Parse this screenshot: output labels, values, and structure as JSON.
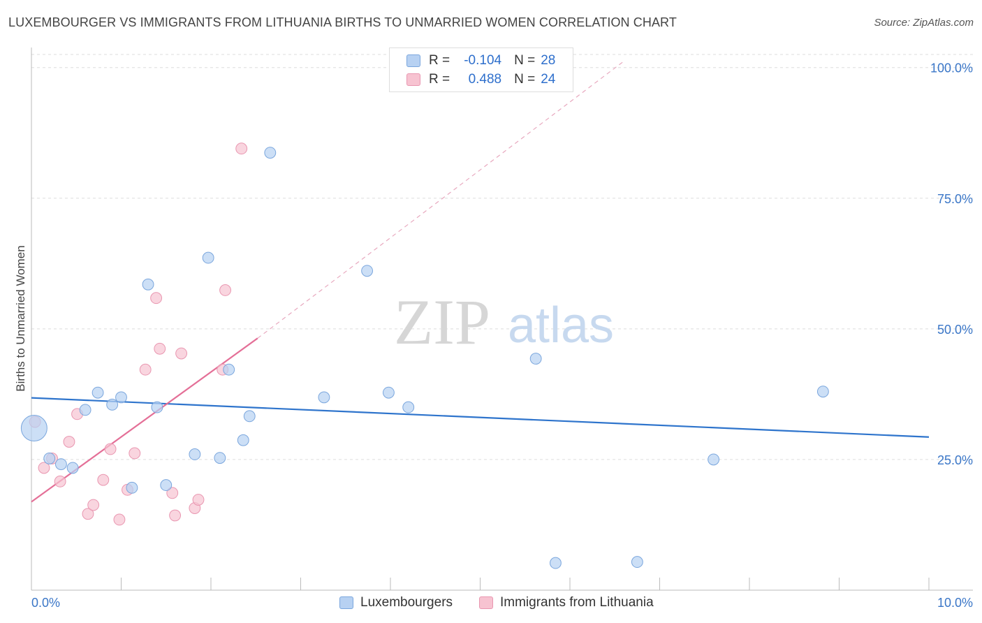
{
  "title": "LUXEMBOURGER VS IMMIGRANTS FROM LITHUANIA BIRTHS TO UNMARRIED WOMEN CORRELATION CHART",
  "source": "Source: ZipAtlas.com",
  "watermark": {
    "zip": "ZIP",
    "atlas": "atlas"
  },
  "legend": {
    "rows": [
      {
        "r_label": "R =",
        "r_value": "-0.104",
        "n_label": "N =",
        "n_value": "28"
      },
      {
        "r_label": "R =",
        "r_value": "0.488",
        "n_label": "N =",
        "n_value": "24"
      }
    ]
  },
  "bottom_legend": {
    "series1": "Luxembourgers",
    "series2": "Immigrants from Lithuania"
  },
  "colors": {
    "blue_fill": "#b7d1f2",
    "blue_stroke": "#7aa6dd",
    "blue_line": "#2e74cc",
    "pink_fill": "#f7c3d1",
    "pink_stroke": "#e996b0",
    "pink_line": "#e46f97",
    "tick_label": "#3a76c7",
    "grid": "#dddddd"
  },
  "chart_data": {
    "type": "scatter",
    "title": "LUXEMBOURGER VS IMMIGRANTS FROM LITHUANIA BIRTHS TO UNMARRIED WOMEN CORRELATION CHART",
    "xlabel": "",
    "ylabel": "Births to Unmarried Women",
    "xlim": [
      0,
      10
    ],
    "ylim": [
      0,
      102.5
    ],
    "x_tick_labels": [
      "0.0%",
      "10.0%"
    ],
    "y_ticks": [
      25,
      50,
      75,
      100
    ],
    "y_tick_labels": [
      "25.0%",
      "50.0%",
      "75.0%",
      "100.0%"
    ],
    "grid": true,
    "series": [
      {
        "name": "Luxembourgers",
        "points": [
          [
            0.2,
            25.2
          ],
          [
            0.33,
            24.1
          ],
          [
            0.46,
            23.4
          ],
          [
            0.6,
            34.5
          ],
          [
            0.74,
            37.8
          ],
          [
            0.9,
            35.5
          ],
          [
            1.0,
            36.9
          ],
          [
            1.12,
            19.6
          ],
          [
            1.3,
            58.5
          ],
          [
            1.4,
            35.0
          ],
          [
            1.5,
            20.1
          ],
          [
            1.82,
            26.0
          ],
          [
            1.97,
            63.6
          ],
          [
            2.1,
            25.3
          ],
          [
            2.2,
            42.2
          ],
          [
            2.36,
            28.7
          ],
          [
            2.43,
            33.3
          ],
          [
            2.66,
            83.7
          ],
          [
            3.26,
            36.9
          ],
          [
            3.74,
            61.1
          ],
          [
            3.98,
            37.8
          ],
          [
            4.2,
            35.0
          ],
          [
            5.62,
            44.3
          ],
          [
            5.84,
            5.2
          ],
          [
            6.75,
            5.4
          ],
          [
            7.6,
            25.0
          ],
          [
            8.82,
            38.0
          ],
          [
            0.03,
            31.0
          ]
        ],
        "sizes": [
          12,
          12,
          12,
          12,
          12,
          12,
          12,
          12,
          12,
          12,
          12,
          12,
          12,
          12,
          12,
          12,
          12,
          12,
          12,
          12,
          12,
          12,
          12,
          12,
          12,
          12,
          12,
          28
        ],
        "trend": {
          "x": [
            0,
            10
          ],
          "y": [
            36.8,
            29.3
          ],
          "r": -0.104,
          "n": 28
        }
      },
      {
        "name": "Immigrants from Lithuania",
        "points": [
          [
            0.04,
            32.2
          ],
          [
            0.14,
            23.4
          ],
          [
            0.23,
            25.2
          ],
          [
            0.32,
            20.8
          ],
          [
            0.42,
            28.4
          ],
          [
            0.51,
            33.7
          ],
          [
            0.63,
            14.6
          ],
          [
            0.69,
            16.3
          ],
          [
            0.8,
            21.1
          ],
          [
            0.88,
            27.0
          ],
          [
            0.98,
            13.5
          ],
          [
            1.07,
            19.2
          ],
          [
            1.15,
            26.2
          ],
          [
            1.27,
            42.2
          ],
          [
            1.39,
            55.9
          ],
          [
            1.43,
            46.2
          ],
          [
            1.57,
            18.6
          ],
          [
            1.6,
            14.3
          ],
          [
            1.67,
            45.3
          ],
          [
            1.82,
            15.7
          ],
          [
            1.86,
            17.3
          ],
          [
            2.13,
            42.2
          ],
          [
            2.16,
            57.4
          ],
          [
            2.34,
            84.5
          ]
        ],
        "sizes": [
          12,
          12,
          12,
          12,
          12,
          12,
          12,
          12,
          12,
          12,
          12,
          12,
          12,
          12,
          12,
          12,
          12,
          12,
          12,
          12,
          12,
          12,
          12,
          12
        ],
        "trend": {
          "x": [
            0,
            2.52
          ],
          "y": [
            16.9,
            48.2
          ],
          "extended_x": [
            2.52,
            6.6
          ],
          "extended_y": [
            48.2,
            101.2
          ],
          "r": 0.488,
          "n": 24
        }
      }
    ]
  }
}
